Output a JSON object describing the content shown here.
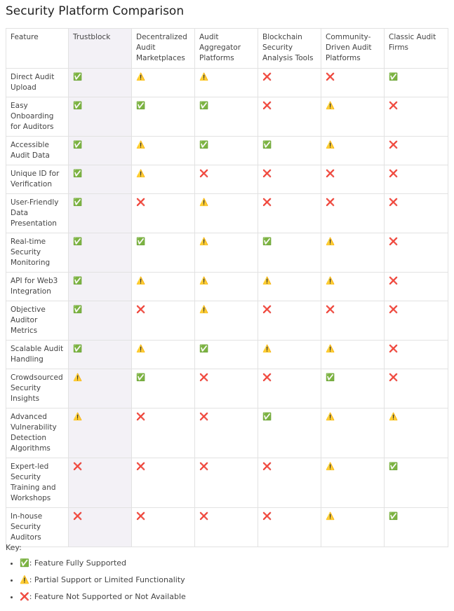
{
  "title": "Security Platform Comparison",
  "table": {
    "header": [
      "Feature",
      "Trustblock",
      "Decentralized Audit Marketplaces",
      "Audit Aggregator Platforms",
      "Blockchain Security Analysis Tools",
      "Community-Driven Audit Platforms",
      "Classic Audit Firms"
    ],
    "rows": [
      [
        "Direct Audit Upload",
        "✅",
        "⚠️",
        "⚠️",
        "❌",
        "❌",
        "✅"
      ],
      [
        "Easy Onboarding for Auditors",
        "✅",
        "✅",
        "✅",
        "❌",
        "⚠️",
        "❌"
      ],
      [
        "Accessible Audit Data",
        "✅",
        "⚠️",
        "✅",
        "✅",
        "⚠️",
        "❌"
      ],
      [
        "Unique ID for Verification",
        "✅",
        "⚠️",
        "❌",
        "❌",
        "❌",
        "❌"
      ],
      [
        "User-Friendly Data Presentation",
        "✅",
        "❌",
        "⚠️",
        "❌",
        "❌",
        "❌"
      ],
      [
        "Real-time Security Monitoring",
        "✅",
        "✅",
        "⚠️",
        "✅",
        "⚠️",
        "❌"
      ],
      [
        "API for Web3 Integration",
        "✅",
        "⚠️",
        "⚠️",
        "⚠️",
        "⚠️",
        "❌"
      ],
      [
        "Objective Auditor Metrics",
        "✅",
        "❌",
        "⚠️",
        "❌",
        "❌",
        "❌"
      ],
      [
        "Scalable Audit Handling",
        "✅",
        "⚠️",
        "✅",
        "⚠️",
        "⚠️",
        "❌"
      ],
      [
        "Crowdsourced Security Insights",
        "⚠️",
        "✅",
        "❌",
        "❌",
        "✅",
        "❌"
      ],
      [
        "Advanced Vulnerability Detection Algorithms",
        "⚠️",
        "❌",
        "❌",
        "✅",
        "⚠️",
        "⚠️"
      ],
      [
        "Expert-led Security Training and Workshops",
        "❌",
        "❌",
        "❌",
        "❌",
        "⚠️",
        "✅"
      ],
      [
        "In-house Security Auditors",
        "❌",
        "❌",
        "❌",
        "❌",
        "⚠️",
        "✅"
      ]
    ]
  },
  "key": {
    "title": "Key:",
    "items": [
      {
        "symbol": "✅",
        "text": ": Feature Fully Supported"
      },
      {
        "symbol": "⚠️",
        "text": ": Partial Support or Limited Functionality"
      },
      {
        "symbol": "❌",
        "text": ": Feature Not Supported or Not Available"
      }
    ]
  }
}
